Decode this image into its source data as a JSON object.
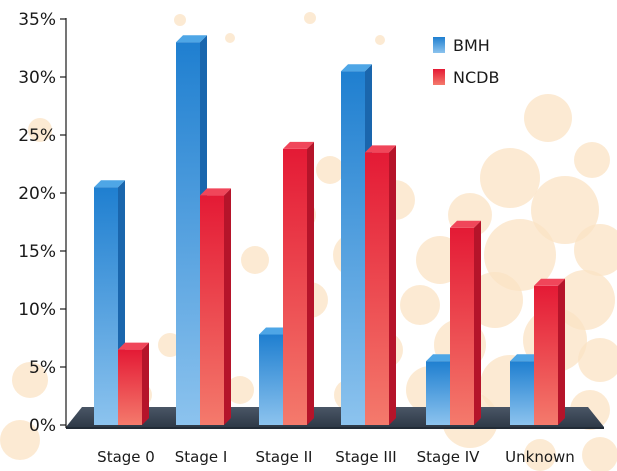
{
  "chart_data": {
    "type": "bar",
    "title": "",
    "xlabel": "",
    "ylabel": "",
    "categories": [
      "Stage 0",
      "Stage I",
      "Stage II",
      "Stage III",
      "Stage IV",
      "Unknown"
    ],
    "series": [
      {
        "name": "BMH",
        "values": [
          20.5,
          33.0,
          7.8,
          30.5,
          5.5,
          5.5
        ]
      },
      {
        "name": "NCDB",
        "values": [
          6.5,
          19.8,
          23.8,
          23.5,
          17.0,
          12.0
        ]
      }
    ],
    "ylim": [
      0,
      35
    ],
    "yticks": [
      "0%",
      "5%",
      "10%",
      "15%",
      "20%",
      "25%",
      "30%",
      "35%"
    ],
    "legend_position": "top-right",
    "grid": false,
    "colors": {
      "BMH": "#2a8bd6",
      "NCDB": "#e8273c",
      "floor": "#3a4655",
      "bubbles": "#fbe3c4"
    }
  }
}
